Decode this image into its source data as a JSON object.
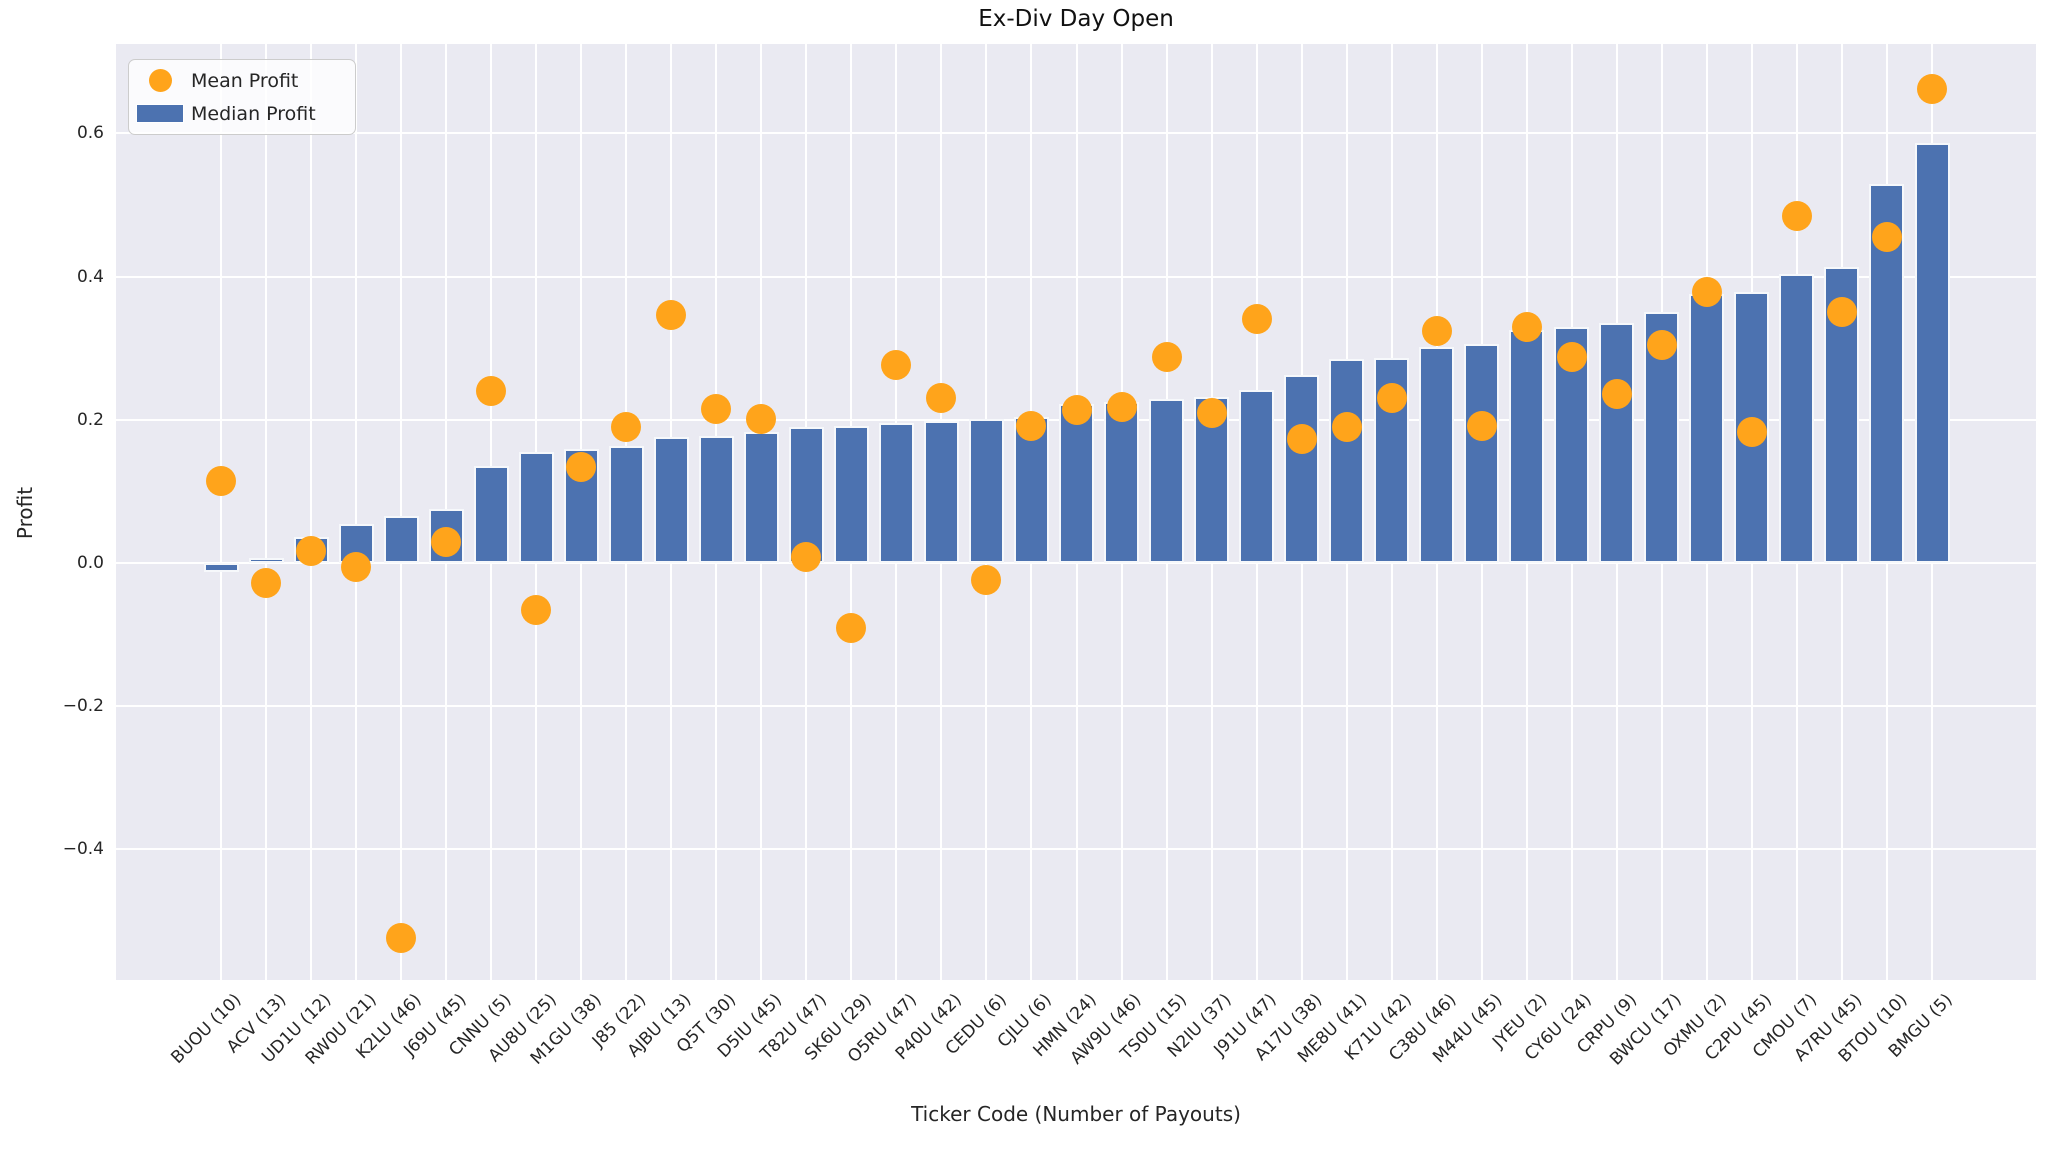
{
  "title": "Ex-Div Day Open",
  "legend": {
    "mean_label": "Mean Profit",
    "median_label": "Median Profit",
    "position": "upper left"
  },
  "colors": {
    "mean_marker": "#FFA41B",
    "median_bar": "#4C72B0",
    "plot_background": "#EAEAF2",
    "gridline": "#FFFFFF",
    "text": "#262626"
  },
  "chart_data": {
    "type": "bar",
    "title": "Ex-Div Day Open",
    "xlabel": "Ticker Code (Number of Payouts)",
    "ylabel": "Profit",
    "grid": true,
    "legend_position": "upper left",
    "ylim": [
      -0.582,
      0.728
    ],
    "yticks": {
      "values": [
        0.6,
        0.4,
        0.2,
        0.0,
        -0.2,
        -0.4
      ],
      "labels": [
        "0.6",
        "0.4",
        "0.2",
        "0.0",
        "−0.2",
        "−0.4"
      ]
    },
    "categories": [
      "BUOU (10)",
      "ACV (13)",
      "UD1U (12)",
      "RW0U (21)",
      "K2LU (46)",
      "J69U (45)",
      "CNNU (5)",
      "AU8U (25)",
      "M1GU (38)",
      "J85 (22)",
      "AJBU (13)",
      "Q5T (30)",
      "D5IU (45)",
      "T82U (47)",
      "SK6U (29)",
      "O5RU (47)",
      "P40U (42)",
      "CEDU (6)",
      "CJLU (6)",
      "HMN (24)",
      "AW9U (46)",
      "TS0U (15)",
      "N2IU (37)",
      "J91U (47)",
      "A17U (38)",
      "ME8U (41)",
      "K71U (42)",
      "C38U (46)",
      "M44U (45)",
      "JYEU (2)",
      "CY6U (24)",
      "CRPU (9)",
      "BWCU (17)",
      "OXMU (2)",
      "C2PU (45)",
      "CMOU (7)",
      "A7RU (45)",
      "BTOU (10)",
      "BMGU (5)"
    ],
    "series": [
      {
        "name": "Median Profit",
        "type": "bar",
        "color": "#4C72B0",
        "values": [
          -0.013,
          0.007,
          0.037,
          0.054,
          0.065,
          0.075,
          0.135,
          0.155,
          0.159,
          0.164,
          0.176,
          0.178,
          0.183,
          0.19,
          0.192,
          0.196,
          0.199,
          0.201,
          0.204,
          0.222,
          0.225,
          0.229,
          0.232,
          0.242,
          0.262,
          0.285,
          0.287,
          0.302,
          0.306,
          0.326,
          0.329,
          0.335,
          0.351,
          0.376,
          0.379,
          0.403,
          0.414,
          0.529,
          0.586
        ]
      },
      {
        "name": "Mean Profit",
        "type": "scatter",
        "color": "#FFA41B",
        "values": [
          0.114,
          -0.028,
          0.017,
          -0.006,
          -0.524,
          0.03,
          0.24,
          -0.066,
          0.134,
          0.19,
          0.346,
          0.215,
          0.201,
          0.008,
          -0.091,
          0.277,
          0.231,
          -0.024,
          0.192,
          0.214,
          0.218,
          0.288,
          0.21,
          0.341,
          0.173,
          0.19,
          0.231,
          0.324,
          0.192,
          0.329,
          0.288,
          0.236,
          0.305,
          0.379,
          0.183,
          0.484,
          0.351,
          0.456,
          0.662
        ]
      }
    ]
  }
}
